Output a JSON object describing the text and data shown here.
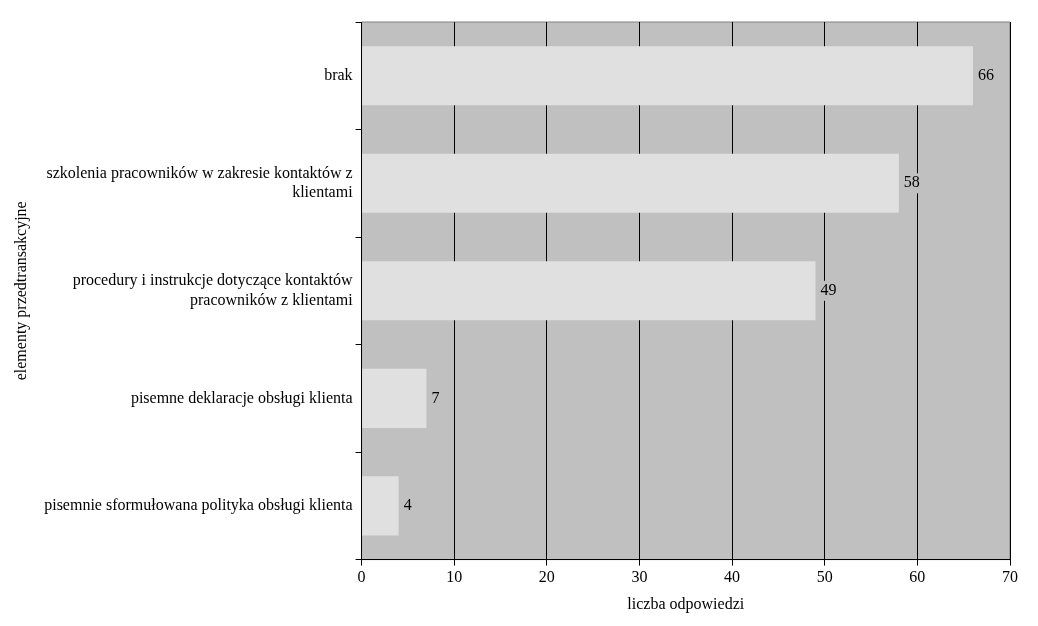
{
  "chart_data": {
    "type": "bar",
    "orientation": "horizontal",
    "categories": [
      "brak",
      "szkolenia pracowników w zakresie kontaktów z klientami",
      "procedury i instrukcje dotyczące kontaktów pracowników z klientami",
      "pisemne deklaracje obsługi klienta",
      "pisemnie sformułowana polityka obsługi klienta"
    ],
    "values": [
      66,
      58,
      49,
      7,
      4
    ],
    "color": "#e0e0e0",
    "xlim": [
      0,
      70
    ],
    "xticks": [
      0,
      10,
      20,
      30,
      40,
      50,
      60,
      70
    ],
    "grid": "x",
    "data_labels": true,
    "xlabel": "liczba odpowiedzi",
    "ylabel": "elementy przedtransakcyjne"
  }
}
